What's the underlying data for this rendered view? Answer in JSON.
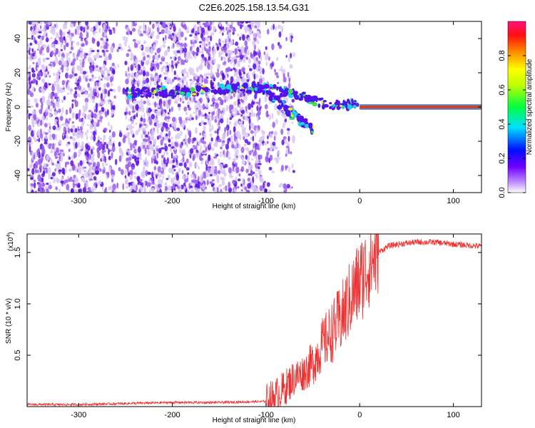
{
  "chart_data": [
    {
      "type": "heatmap",
      "title": "C2E6.2025.158.13.54.G31",
      "xlabel": "Height of straight line (km)",
      "ylabel": "Frequency (Hz)",
      "xlim": [
        -355,
        130
      ],
      "ylim": [
        -50,
        50
      ],
      "xticks": [
        "-300",
        "-200",
        "-100",
        "0",
        "100"
      ],
      "xtick_values": [
        -300,
        -200,
        -100,
        0,
        100
      ],
      "yticks": [
        "-40",
        "-20",
        "0",
        "20",
        "40"
      ],
      "ytick_values": [
        -40,
        -20,
        0,
        20,
        40
      ],
      "colorbar": {
        "label": "Normalized spectral amplitude",
        "ticks": [
          "0.0",
          "0.2",
          "0.4",
          "0.6",
          "0.8"
        ],
        "tick_values": [
          0,
          0.2,
          0.4,
          0.6,
          0.8
        ],
        "range": [
          0,
          1
        ]
      },
      "colors": {
        "noise_light": "#d8c8f4",
        "noise_mid": "#9a5cf0",
        "noise_dark": "#5a10e8",
        "cyan": "#19d6e6",
        "green": "#3de04a",
        "yellow": "#f2ea18",
        "red": "#ff2020",
        "magenta": "#f0186a"
      },
      "features": [
        {
          "label": "upper trace",
          "x": [
            -250,
            -220,
            -190,
            -160,
            -130,
            -110,
            -90,
            -70,
            -55,
            -45,
            -35,
            -25,
            -15,
            -5,
            0
          ],
          "y": [
            8,
            9,
            9,
            10,
            11,
            11,
            10,
            8,
            5,
            3,
            2,
            1,
            1,
            2,
            1
          ]
        },
        {
          "label": "lower trace",
          "x": [
            -95,
            -85,
            -75,
            -65,
            -55,
            -50
          ],
          "y": [
            6,
            2,
            -3,
            -7,
            -11,
            -14
          ]
        },
        {
          "label": "carrier",
          "x": [
            0,
            130
          ],
          "y": [
            0,
            0
          ],
          "amplitude": 0.95
        }
      ],
      "noise_region_x": [
        -355,
        -95
      ]
    },
    {
      "type": "line",
      "xlabel": "Height of straight line (km)",
      "ylabel": "SNR (10 * v/v)",
      "y_multiplier": "(x10",
      "y_multiplier_exp": "4",
      "y_multiplier_close": ")",
      "xlim": [
        -355,
        130
      ],
      "ylim": [
        0,
        1.68
      ],
      "xticks": [
        "-300",
        "-200",
        "-100",
        "0",
        "100"
      ],
      "xtick_values": [
        -300,
        -200,
        -100,
        0,
        100
      ],
      "yticks": [
        "0.5",
        "1.0",
        "1.5"
      ],
      "ytick_values": [
        0.5,
        1.0,
        1.5
      ],
      "line_color": "#f03030",
      "series": [
        {
          "x": [
            -355,
            -300,
            -250,
            -200,
            -150,
            -100,
            -90,
            -80,
            -70,
            -60,
            -50,
            -40,
            -30,
            -20,
            -10,
            0,
            10,
            20,
            30,
            40,
            60,
            80,
            100,
            130
          ],
          "values": [
            0.02,
            0.02,
            0.03,
            0.04,
            0.04,
            0.05,
            0.1,
            0.18,
            0.28,
            0.33,
            0.42,
            0.6,
            0.72,
            0.85,
            1.05,
            1.22,
            1.38,
            1.5,
            1.56,
            1.58,
            1.6,
            1.6,
            1.58,
            1.56
          ]
        }
      ]
    }
  ]
}
